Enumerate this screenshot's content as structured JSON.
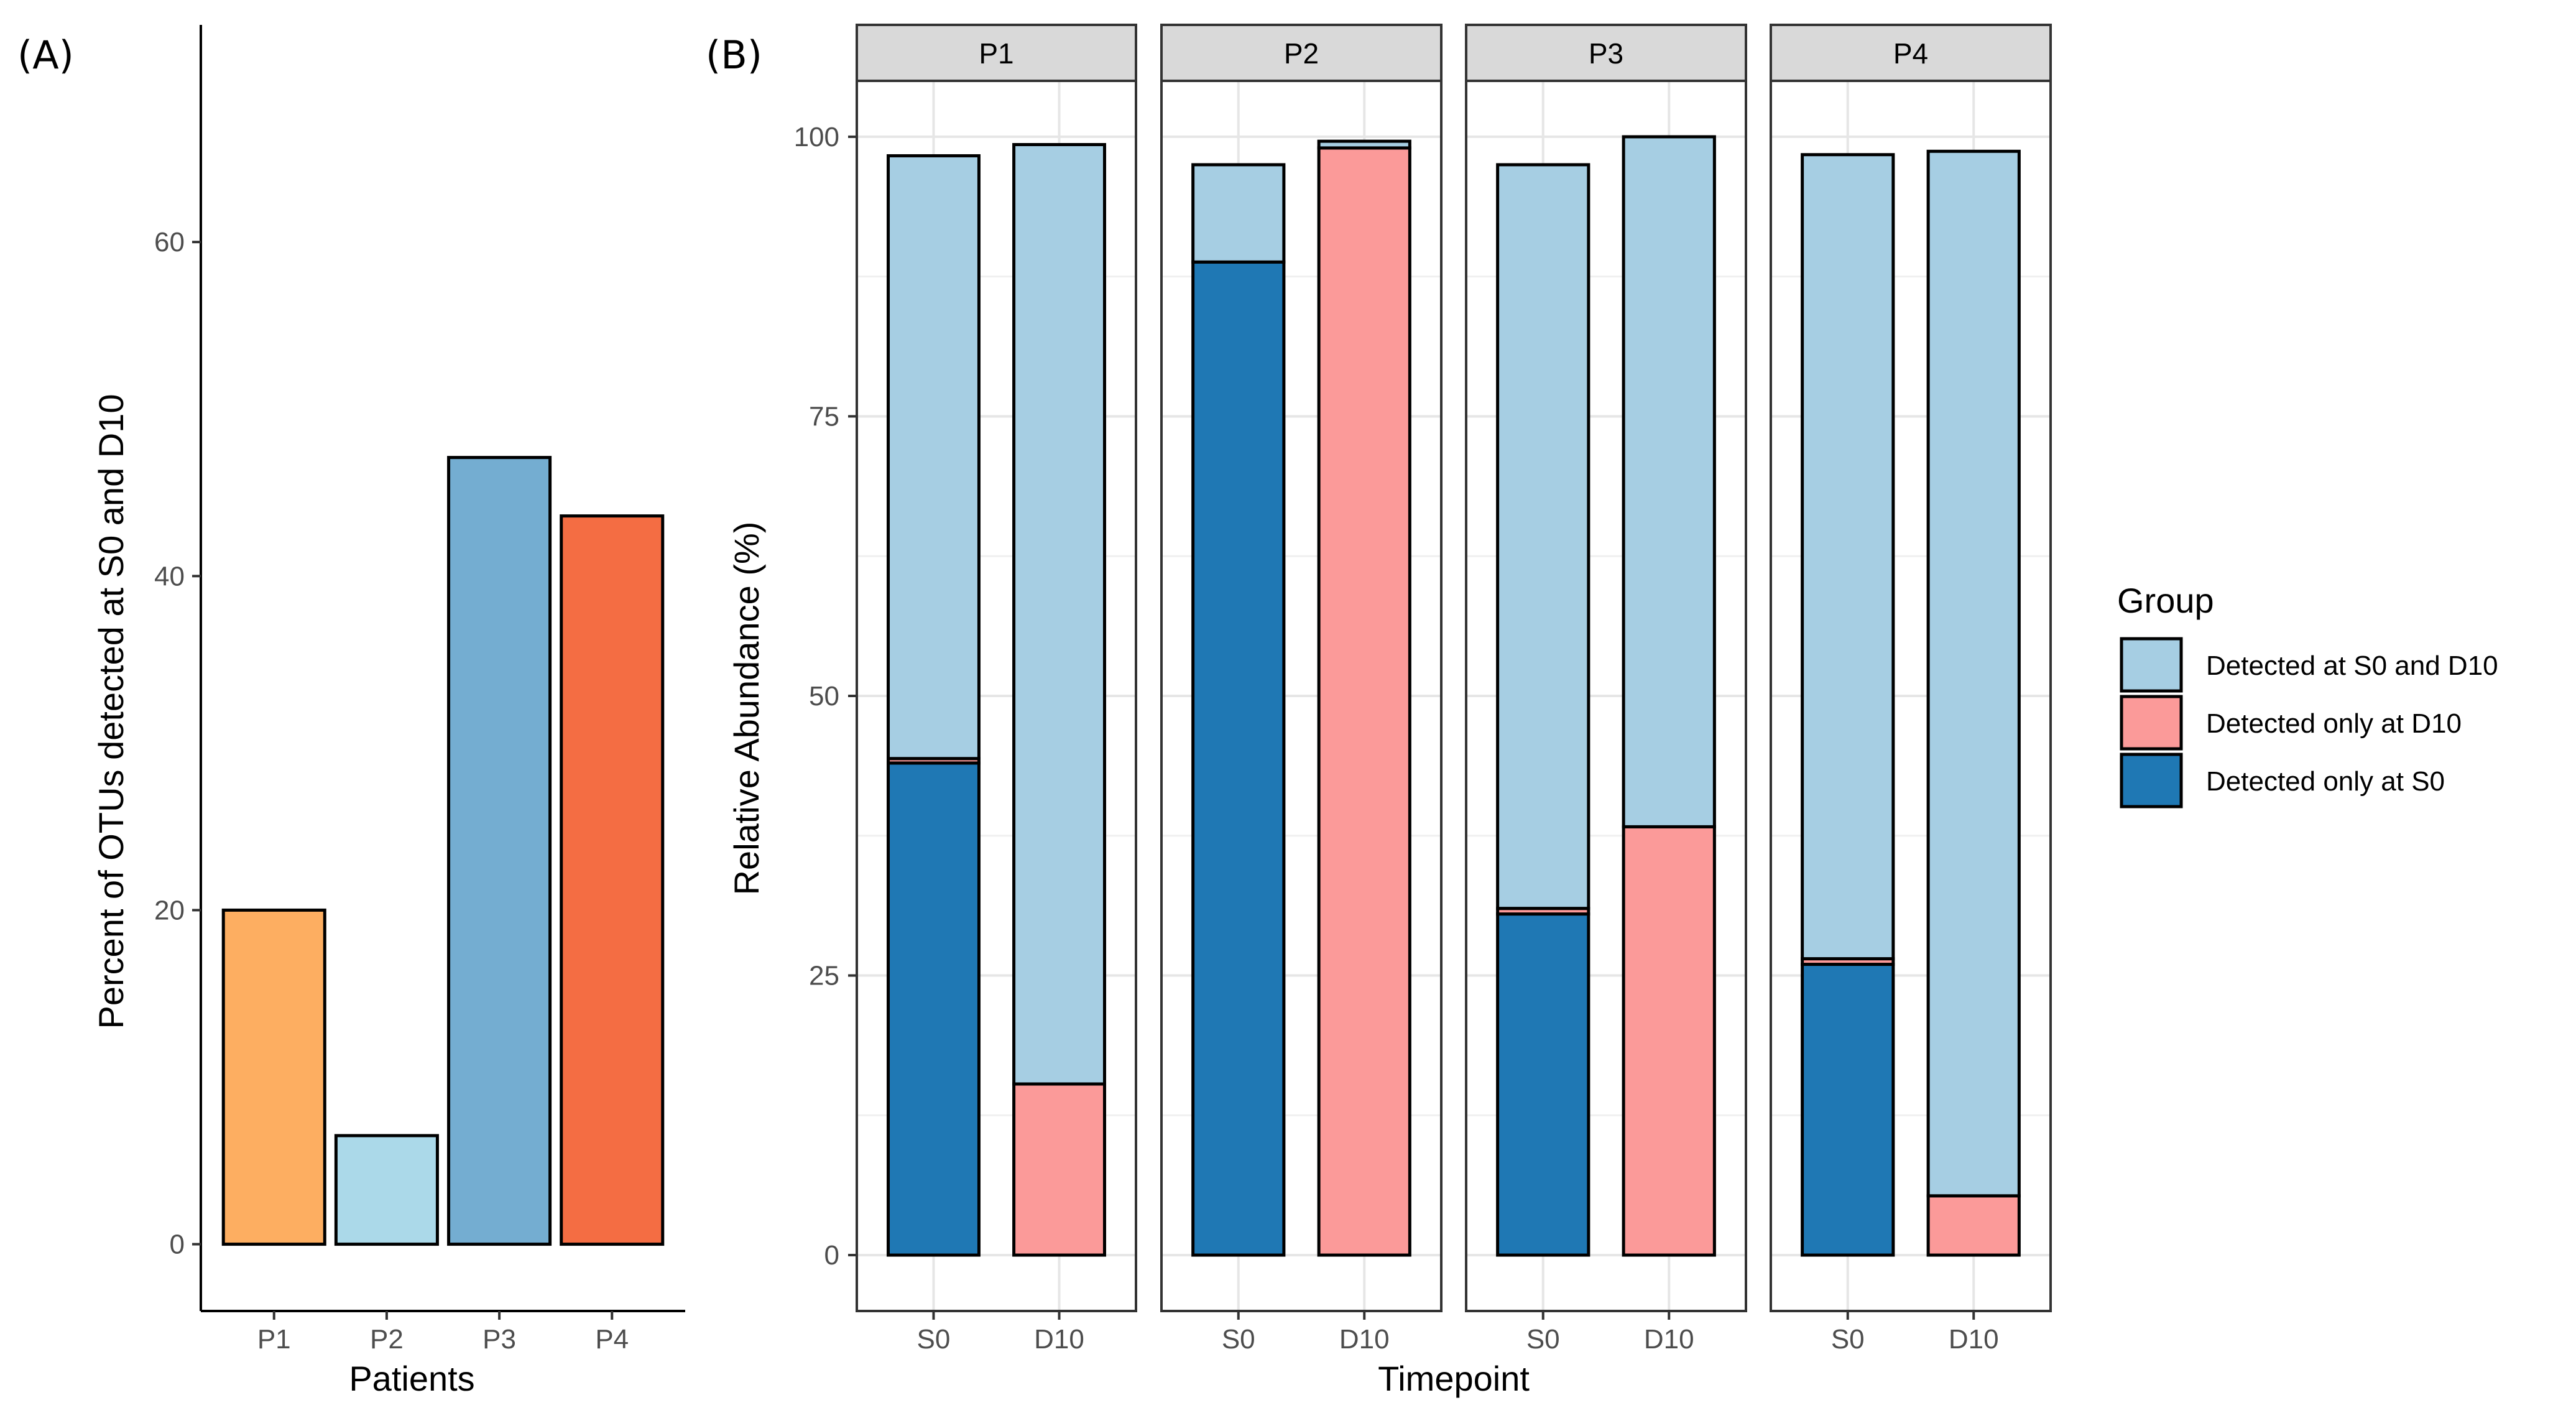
{
  "chart_data": [
    {
      "type": "bar",
      "panel_label": "(A)",
      "categories": [
        "P1",
        "P2",
        "P3",
        "P4"
      ],
      "values": [
        20.0,
        6.5,
        47.1,
        43.6
      ],
      "colors": [
        "#fdae61",
        "#abd9e9",
        "#74add1",
        "#f46d43"
      ],
      "xlabel": "Patients",
      "ylabel": "Percent of OTUs detected at S0 and D10",
      "ylim": [
        -4,
        73
      ],
      "yticks": [
        0,
        20,
        40,
        60
      ]
    },
    {
      "type": "stacked-bar",
      "panel_label": "(B)",
      "facets": [
        "P1",
        "P2",
        "P3",
        "P4"
      ],
      "categories": [
        "S0",
        "D10"
      ],
      "xlabel": "Timepoint",
      "ylabel": "Relative Abundance (%)",
      "ylim": [
        -5,
        105
      ],
      "yticks": [
        0,
        25,
        50,
        75,
        100
      ],
      "grid": true,
      "legend_title": "Group",
      "legend_position": "right",
      "series": [
        {
          "name": "Detected only at S0",
          "color": "#1f78b4",
          "values": {
            "P1": [
              44.0,
              0.0
            ],
            "P2": [
              88.8,
              0.0
            ],
            "P3": [
              30.5,
              0.0
            ],
            "P4": [
              26.0,
              0.0
            ]
          }
        },
        {
          "name": "Detected only at D10",
          "color": "#fb9a99",
          "values": {
            "P1": [
              0.4,
              15.3
            ],
            "P2": [
              0.0,
              99.0
            ],
            "P3": [
              0.5,
              38.3
            ],
            "P4": [
              0.5,
              5.3
            ]
          }
        },
        {
          "name": "Detected at S0 and D10",
          "color": "#a6cee3",
          "values": {
            "P1": [
              53.9,
              84.0
            ],
            "P2": [
              8.7,
              0.6
            ],
            "P3": [
              66.5,
              61.7
            ],
            "P4": [
              71.9,
              93.4
            ]
          }
        }
      ],
      "legend_order": [
        "Detected at S0 and D10",
        "Detected only at D10",
        "Detected only at S0"
      ]
    }
  ]
}
